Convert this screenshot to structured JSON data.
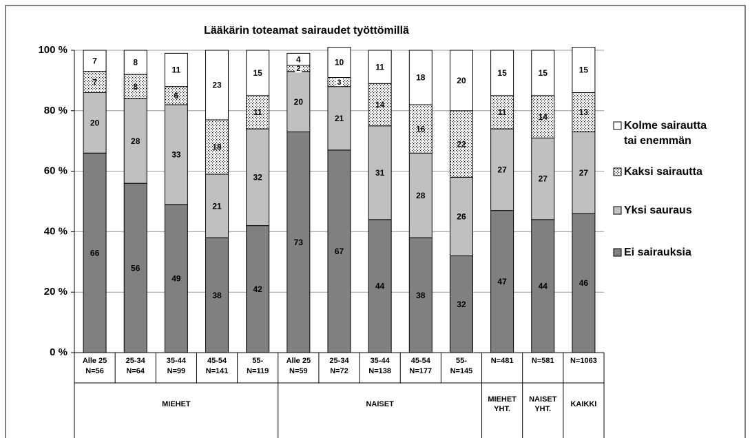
{
  "chart_data": {
    "type": "stacked_bar",
    "title": "Lääkärin toteamat sairaudet työttömillä",
    "categories": [
      "Alle 25\nN=56",
      "25-34\nN=64",
      "35-44\nN=99",
      "45-54\nN=141",
      "55-\nN=119",
      "Alle 25\nN=59",
      "25-34\nN=72",
      "35-44\nN=138",
      "45-54\nN=177",
      "55-\nN=145",
      "N=481",
      "N=581",
      "N=1063"
    ],
    "category_groups": [
      "MIEHET",
      "MIEHET",
      "MIEHET",
      "MIEHET",
      "MIEHET",
      "NAISET",
      "NAISET",
      "NAISET",
      "NAISET",
      "NAISET",
      "MIEHET\nYHT.",
      "NAISET\nYHT.",
      "KAIKKI"
    ],
    "series": [
      {
        "name": "Ei sairauksia",
        "color": "#808080",
        "values": [
          66,
          56,
          49,
          38,
          42,
          73,
          67,
          44,
          38,
          32,
          47,
          44,
          46
        ]
      },
      {
        "name": "Yksi sauraus",
        "color": "#c0c0c0",
        "values": [
          20,
          28,
          33,
          21,
          32,
          20,
          21,
          31,
          28,
          26,
          27,
          27,
          27
        ]
      },
      {
        "name": "Kaksi sairautta",
        "color": "#ffffff",
        "fill_pattern": "dots",
        "values": [
          7,
          8,
          6,
          18,
          11,
          2,
          3,
          14,
          16,
          22,
          11,
          14,
          13
        ]
      },
      {
        "name": "Kolme sairautta\ntai enemmän",
        "color": "#ffffff",
        "values": [
          7,
          8,
          11,
          23,
          15,
          4,
          10,
          11,
          18,
          20,
          15,
          15,
          15
        ]
      }
    ],
    "ylim": [
      0,
      100
    ],
    "yticks": [
      {
        "value": 0,
        "label": "0 %"
      },
      {
        "value": 20,
        "label": "20 %"
      },
      {
        "value": 40,
        "label": "40 %"
      },
      {
        "value": 60,
        "label": "60 %"
      },
      {
        "value": 80,
        "label": "80 %"
      },
      {
        "value": 100,
        "label": "100 %"
      }
    ],
    "grid": true,
    "legend": "right"
  }
}
